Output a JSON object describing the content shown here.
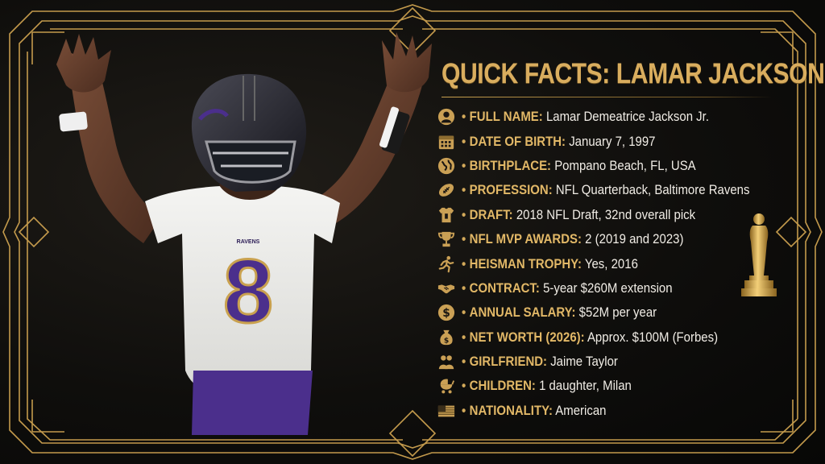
{
  "title": "QUICK FACTS: LAMAR JACKSON",
  "player": {
    "jersey_number": "8",
    "team_wordmark": "RAVENS"
  },
  "accent_colors": {
    "gold": "#d9ad5e",
    "label_gold": "#e2b867",
    "background": "#0b0a08",
    "jersey_purple": "#4b2f8c"
  },
  "facts": [
    {
      "icon": "person-icon",
      "label": "FULL NAME:",
      "value": "Lamar Demeatrice Jackson Jr."
    },
    {
      "icon": "calendar-icon",
      "label": "DATE OF BIRTH:",
      "value": "January 7, 1997"
    },
    {
      "icon": "globe-icon",
      "label": "BIRTHPLACE:",
      "value": "Pompano Beach, FL, USA"
    },
    {
      "icon": "football-icon",
      "label": "PROFESSION:",
      "value": "NFL Quarterback, Baltimore Ravens"
    },
    {
      "icon": "jersey-icon",
      "label": "DRAFT:",
      "value": "2018 NFL Draft, 32nd overall pick"
    },
    {
      "icon": "trophy-icon",
      "label": "NFL MVP AWARDS:",
      "value": "2 (2019 and 2023)"
    },
    {
      "icon": "runner-icon",
      "label": "HEISMAN TROPHY:",
      "value": "Yes, 2016"
    },
    {
      "icon": "handshake-icon",
      "label": "CONTRACT:",
      "value": "5-year $260M extension"
    },
    {
      "icon": "dollar-coin-icon",
      "label": "ANNUAL SALARY:",
      "value": "$52M per year"
    },
    {
      "icon": "money-bag-icon",
      "label": "NET WORTH (2026):",
      "value": "Approx. $100M (Forbes)"
    },
    {
      "icon": "couple-icon",
      "label": "GIRLFRIEND:",
      "value": "Jaime Taylor"
    },
    {
      "icon": "stroller-icon",
      "label": "CHILDREN:",
      "value": "1 daughter, Milan"
    },
    {
      "icon": "us-flag-icon",
      "label": "NATIONALITY:",
      "value": "American"
    }
  ],
  "bullet": "•"
}
